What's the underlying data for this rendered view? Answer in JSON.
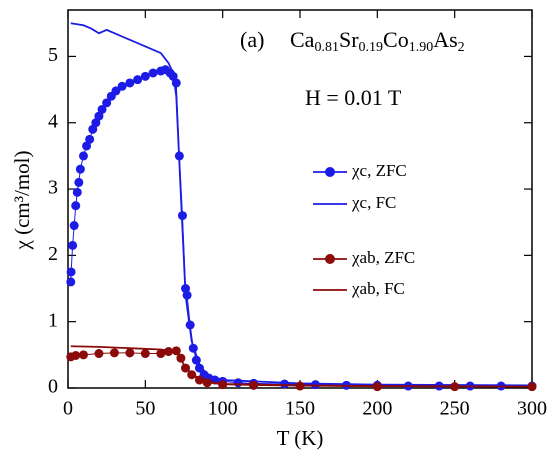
{
  "chart_data": {
    "type": "line",
    "formula": [
      "Ca",
      "0.81",
      "Sr",
      "0.19",
      "Co",
      "1.90",
      "As",
      "2"
    ],
    "annotations": [
      "(a)",
      "H = 0.01 T"
    ],
    "xlabel": "T (K)",
    "ylabel": "χ (cm³/mol)",
    "xlim": [
      0,
      300
    ],
    "xticks": [
      0,
      50,
      100,
      150,
      200,
      250,
      300
    ],
    "ylim": [
      0,
      5.7
    ],
    "yticks": [
      0,
      1,
      2,
      3,
      4,
      5
    ],
    "series": [
      {
        "name": "χc, ZFC",
        "color": "#1c1ce6",
        "style": "markers",
        "x": [
          1.8,
          2,
          3,
          4,
          5,
          6,
          7,
          8,
          10,
          12,
          14,
          16,
          18,
          20,
          22,
          25,
          28,
          31,
          35,
          40,
          45,
          50,
          55,
          60,
          63,
          66,
          68,
          70,
          72,
          74,
          76,
          77,
          79,
          81,
          83,
          85,
          88,
          91,
          95,
          100,
          110,
          120,
          140,
          160,
          180,
          200,
          220,
          240,
          260,
          280,
          300
        ],
        "values": [
          1.6,
          1.75,
          2.15,
          2.45,
          2.75,
          2.95,
          3.1,
          3.3,
          3.5,
          3.65,
          3.75,
          3.9,
          4.0,
          4.1,
          4.2,
          4.3,
          4.4,
          4.48,
          4.55,
          4.6,
          4.65,
          4.7,
          4.75,
          4.78,
          4.8,
          4.75,
          4.7,
          4.6,
          3.5,
          2.6,
          1.5,
          1.4,
          0.95,
          0.6,
          0.42,
          0.3,
          0.2,
          0.15,
          0.12,
          0.1,
          0.08,
          0.07,
          0.06,
          0.05,
          0.04,
          0.04,
          0.03,
          0.03,
          0.03,
          0.03,
          0.03
        ]
      },
      {
        "name": "χc, FC",
        "color": "#1c1ce6",
        "style": "line",
        "x": [
          1.8,
          10,
          15,
          20,
          25,
          30,
          40,
          50,
          60,
          65,
          68,
          70,
          72,
          74,
          76,
          80,
          85,
          90,
          100,
          150,
          200,
          300
        ],
        "values": [
          5.5,
          5.47,
          5.42,
          5.35,
          5.4,
          5.35,
          5.25,
          5.15,
          5.05,
          4.9,
          4.75,
          4.4,
          3.4,
          2.4,
          1.4,
          0.7,
          0.35,
          0.2,
          0.12,
          0.07,
          0.05,
          0.04
        ]
      },
      {
        "name": "χab, ZFC",
        "color": "#8b0a0a",
        "style": "markers",
        "x": [
          1.8,
          5,
          10,
          20,
          30,
          40,
          50,
          60,
          65,
          70,
          73,
          76,
          80,
          85,
          90,
          100,
          120,
          150,
          200,
          250,
          300
        ],
        "values": [
          0.47,
          0.49,
          0.5,
          0.52,
          0.53,
          0.53,
          0.52,
          0.52,
          0.55,
          0.56,
          0.45,
          0.3,
          0.2,
          0.12,
          0.08,
          0.05,
          0.04,
          0.03,
          0.02,
          0.02,
          0.02
        ]
      },
      {
        "name": "χab, FC",
        "color": "#8b0a0a",
        "style": "line",
        "x": [
          1.8,
          20,
          40,
          60,
          70,
          75,
          80,
          90,
          100,
          150,
          200,
          300
        ],
        "values": [
          0.63,
          0.62,
          0.6,
          0.58,
          0.55,
          0.35,
          0.2,
          0.1,
          0.06,
          0.04,
          0.03,
          0.02
        ]
      }
    ]
  }
}
